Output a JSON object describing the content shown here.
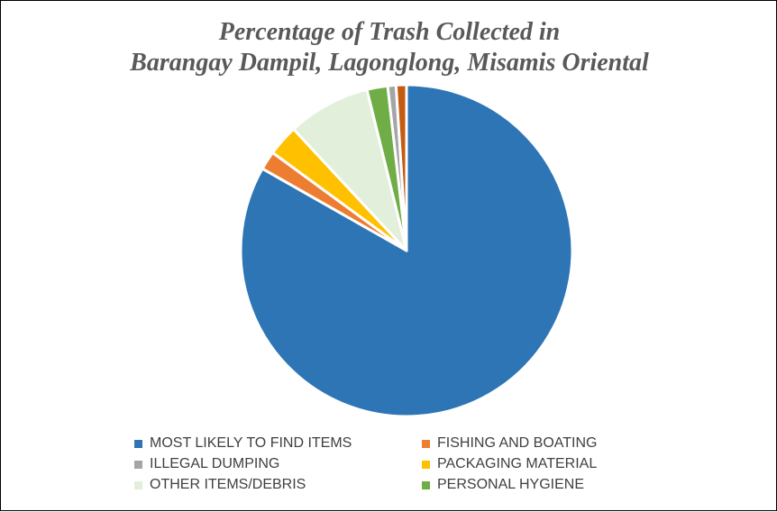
{
  "chart_data": {
    "type": "pie",
    "title_line1": "Percentage of Trash Collected in",
    "title_line2": "Barangay Dampil, Lagonglong, Misamis Oriental",
    "slices": [
      {
        "label": "MOST LIKELY TO FIND ITEMS",
        "value": 82.4,
        "color": "#2e75b6"
      },
      {
        "label": "FISHING AND BOATING",
        "value": 1.8,
        "color": "#ed7d31"
      },
      {
        "label": "PACKAGING MATERIAL",
        "value": 3.0,
        "color": "#ffc000"
      },
      {
        "label": "OTHER ITEMS/DEBRIS",
        "value": 8.0,
        "color": "#e2efda"
      },
      {
        "label": "PERSONAL HYGIENE",
        "value": 2.0,
        "color": "#70ad47"
      },
      {
        "label": "ILLEGAL DUMPING",
        "value": 0.8,
        "color": "#a5a5a5"
      },
      {
        "label": "",
        "value": 1.0,
        "color": "#c55a11"
      }
    ],
    "legend": [
      {
        "label": "MOST LIKELY TO FIND ITEMS",
        "color": "#2e75b6"
      },
      {
        "label": "FISHING AND BOATING",
        "color": "#ed7d31"
      },
      {
        "label": "ILLEGAL DUMPING",
        "color": "#a5a5a5"
      },
      {
        "label": "PACKAGING MATERIAL",
        "color": "#ffc000"
      },
      {
        "label": "OTHER ITEMS/DEBRIS",
        "color": "#e2efda"
      },
      {
        "label": "PERSONAL HYGIENE",
        "color": "#70ad47"
      }
    ],
    "legend_position": "bottom"
  }
}
